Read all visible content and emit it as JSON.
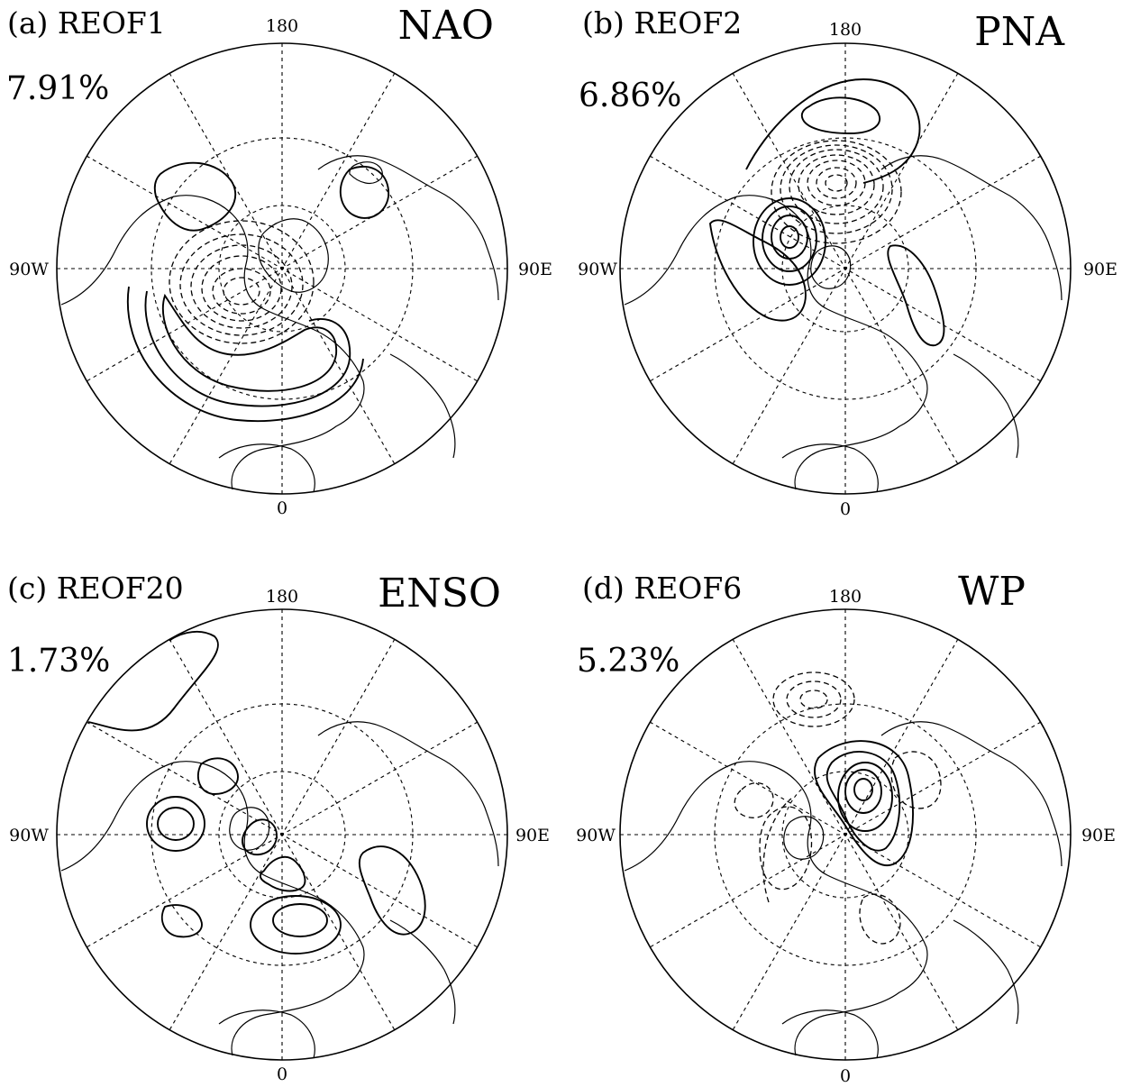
{
  "panels": [
    {
      "id": "a",
      "label": "(a) REOF1",
      "variance": "7.91%",
      "mode": "NAO",
      "lon_labels": {
        "top": "180",
        "bottom": "0",
        "left": "90W",
        "right": "90E"
      }
    },
    {
      "id": "b",
      "label": "(b) REOF2",
      "variance": "6.86%",
      "mode": "PNA",
      "lon_labels": {
        "top": "180",
        "bottom": "0",
        "left": "90W",
        "right": "90E"
      }
    },
    {
      "id": "c",
      "label": "(c) REOF20",
      "variance": "1.73%",
      "mode": "ENSO",
      "lon_labels": {
        "top": "180",
        "bottom": "0",
        "left": "90W",
        "right": "90E"
      }
    },
    {
      "id": "d",
      "label": "(d) REOF6",
      "variance": "5.23%",
      "mode": "WP",
      "lon_labels": {
        "top": "180",
        "bottom": "0",
        "left": "90W",
        "right": "90E"
      }
    }
  ]
}
